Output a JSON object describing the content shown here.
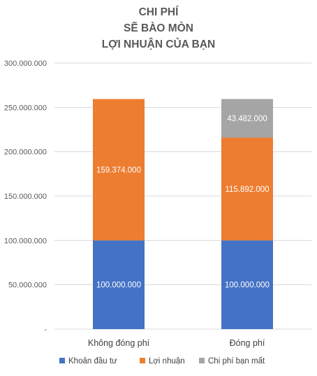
{
  "chart_data": {
    "type": "bar",
    "stacked": true,
    "title_lines": [
      "CHI PHÍ",
      "SẼ BÀO MÒN",
      "LỢI NHUẬN CỦA BẠN"
    ],
    "categories": [
      "Không đóng phí",
      "Đóng phí"
    ],
    "series": [
      {
        "name": "Khoản đầu tư",
        "color": "#4472C4",
        "values": [
          100000000,
          100000000
        ],
        "labels": [
          "100.000.000",
          "100.000.000"
        ]
      },
      {
        "name": "Lợi nhuận",
        "color": "#ED7D31",
        "values": [
          159374000,
          115892000
        ],
        "labels": [
          "159.374.000",
          "115.892.000"
        ]
      },
      {
        "name": "Chi phí bạn mất",
        "color": "#A5A5A5",
        "values": [
          0,
          43482000
        ],
        "labels": [
          "",
          "43.482.000"
        ]
      }
    ],
    "ylim": [
      0,
      300000000
    ],
    "yticks": [
      0,
      50000000,
      100000000,
      150000000,
      200000000,
      250000000,
      300000000
    ],
    "ytick_labels": [
      "-",
      "50.000.000",
      "100.000.000",
      "150.000.000",
      "200.000.000",
      "250.000.000",
      "300.000.000"
    ],
    "grid": true,
    "legend_position": "bottom"
  }
}
